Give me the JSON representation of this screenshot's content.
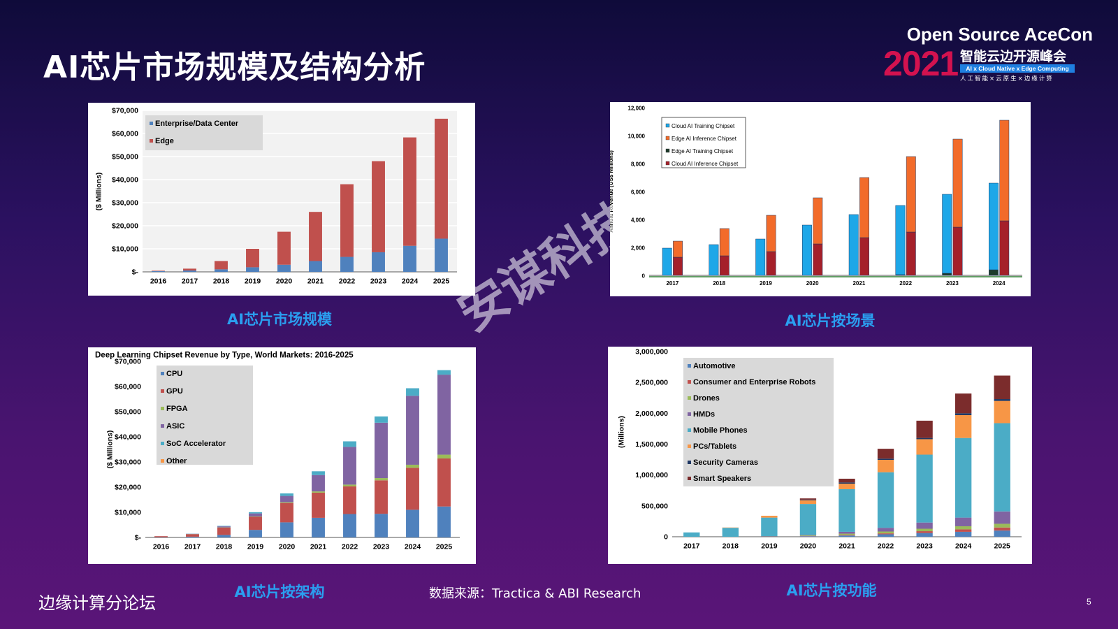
{
  "slide": {
    "title": "AI芯片市场规模及结构分析",
    "footer_left": "边缘计算分论坛",
    "source": "数据来源：Tractica & ABI Research",
    "page_number": "5",
    "watermark": "安谋科技"
  },
  "logo": {
    "brand": "Open Source AceCon",
    "year": "2021",
    "summit": "智能云边开源峰会",
    "bar_text": "AI x Cloud Native x Edge Computing",
    "tagline": "人工智能×云原生×边缘计算"
  },
  "captions": {
    "c1": "AI芯片市场规模",
    "c2": "AI芯片按场景",
    "c3": "AI芯片按架构",
    "c4": "AI芯片按功能"
  },
  "colors": {
    "enterprise": "#4f81bd",
    "edge": "#c0504d",
    "cloud_training": "#1ea7e8",
    "edge_inference": "#f26b2a",
    "edge_training": "#1d3b2a",
    "cloud_inference": "#a5202a",
    "cpu": "#4f81bd",
    "gpu": "#c0504d",
    "fpga": "#9bbb59",
    "asic": "#8064a2",
    "soc": "#4bacc6",
    "other": "#f79646",
    "automotive": "#4f81bd",
    "robots": "#c0504d",
    "drones": "#9bbb59",
    "hmds": "#8064a2",
    "mobile": "#4bacc6",
    "pcs": "#f79646",
    "security": "#1f3864",
    "speakers": "#7b2c2c"
  },
  "chart_data": [
    {
      "id": "market-size",
      "type": "bar",
      "stacked": true,
      "categories": [
        "2016",
        "2017",
        "2018",
        "2019",
        "2020",
        "2021",
        "2022",
        "2023",
        "2024",
        "2025"
      ],
      "series": [
        {
          "name": "Enterprise/Data Center",
          "color_key": "enterprise",
          "values": [
            300,
            600,
            1100,
            2000,
            3100,
            4700,
            6500,
            8500,
            11300,
            14400
          ]
        },
        {
          "name": "Edge",
          "color_key": "edge",
          "values": [
            200,
            800,
            3600,
            8000,
            14300,
            21300,
            31500,
            39500,
            47000,
            52000
          ]
        }
      ],
      "ylabel": "($ Millions)",
      "ylim": [
        0,
        70000
      ],
      "yticks": [
        0,
        10000,
        20000,
        30000,
        40000,
        50000,
        60000,
        70000
      ],
      "ytick_labels": [
        "$-",
        "$10,000",
        "$20,000",
        "$30,000",
        "$40,000",
        "$50,000",
        "$60,000",
        "$70,000"
      ],
      "legend": "top-left",
      "grid": true
    },
    {
      "id": "by-scenario",
      "type": "bar",
      "grouped": true,
      "categories": [
        "2017",
        "2018",
        "2019",
        "2020",
        "2021",
        "2022",
        "2023",
        "2024"
      ],
      "groups": [
        {
          "stack": [
            {
              "name": "Edge AI Training Chipset",
              "color_key": "edge_training",
              "values": [
                0,
                0,
                0,
                0,
                0,
                50,
                150,
                400
              ]
            },
            {
              "name": "Cloud AI Training Chipset",
              "color_key": "cloud_training",
              "values": [
                1950,
                2200,
                2600,
                3600,
                4350,
                4950,
                5650,
                6200
              ]
            }
          ]
        },
        {
          "stack": [
            {
              "name": "Cloud AI Inference Chipset",
              "color_key": "cloud_inference",
              "values": [
                1300,
                1400,
                1700,
                2250,
                2700,
                3100,
                3450,
                3900
              ]
            },
            {
              "name": "Edge AI Inference Chipset",
              "color_key": "edge_inference",
              "values": [
                1150,
                1950,
                2600,
                3300,
                4300,
                5400,
                6300,
                7200
              ]
            }
          ]
        }
      ],
      "legend_entries": [
        "Cloud AI Training Chipset",
        "Edge AI Inference Chipset",
        "Edge AI Training Chipset",
        "Cloud AI Inference Chipset"
      ],
      "legend_colors": [
        "cloud_training",
        "edge_inference",
        "edge_training",
        "cloud_inference"
      ],
      "ylabel": "Annual Revenue (US$ Millions)",
      "ylim": [
        0,
        12000
      ],
      "yticks": [
        0,
        2000,
        4000,
        6000,
        8000,
        10000,
        12000
      ],
      "ytick_labels": [
        "0",
        "2,000",
        "4,000",
        "6,000",
        "8,000",
        "10,000",
        "12,000"
      ],
      "legend": "top-left",
      "grid": false
    },
    {
      "id": "by-architecture",
      "type": "bar",
      "stacked": true,
      "title": "Deep Learning Chipset Revenue by Type, World Markets: 2016-2025",
      "categories": [
        "2016",
        "2017",
        "2018",
        "2019",
        "2020",
        "2021",
        "2022",
        "2023",
        "2024",
        "2025"
      ],
      "series": [
        {
          "name": "CPU",
          "color_key": "cpu",
          "values": [
            100,
            300,
            1000,
            3000,
            6000,
            7800,
            9300,
            9400,
            11000,
            12300
          ]
        },
        {
          "name": "GPU",
          "color_key": "gpu",
          "values": [
            400,
            1000,
            2900,
            5200,
            7700,
            10000,
            11000,
            13300,
            16700,
            19100
          ]
        },
        {
          "name": "FPGA",
          "color_key": "fpga",
          "values": [
            0,
            50,
            100,
            150,
            300,
            500,
            700,
            900,
            1200,
            1500
          ]
        },
        {
          "name": "ASIC",
          "color_key": "asic",
          "values": [
            0,
            100,
            400,
            1200,
            2500,
            6500,
            15000,
            22000,
            27400,
            31800
          ]
        },
        {
          "name": "SoC Accelerator",
          "color_key": "soc",
          "values": [
            0,
            50,
            200,
            500,
            1000,
            1500,
            2200,
            2500,
            3000,
            1800
          ]
        },
        {
          "name": "Other",
          "color_key": "other",
          "values": [
            0,
            0,
            0,
            0,
            0,
            0,
            0,
            0,
            0,
            0
          ]
        }
      ],
      "ylabel": "($ Millions)",
      "ylim": [
        0,
        70000
      ],
      "yticks": [
        0,
        10000,
        20000,
        30000,
        40000,
        50000,
        60000,
        70000
      ],
      "ytick_labels": [
        "$-",
        "$10,000",
        "$20,000",
        "$30,000",
        "$40,000",
        "$50,000",
        "$60,000",
        "$70,000"
      ],
      "legend": "top-left",
      "grid": false
    },
    {
      "id": "by-function",
      "type": "bar",
      "stacked": true,
      "categories": [
        "2017",
        "2018",
        "2019",
        "2020",
        "2021",
        "2022",
        "2023",
        "2024",
        "2025"
      ],
      "series": [
        {
          "name": "Automotive",
          "color_key": "automotive",
          "values": [
            0,
            0,
            2000,
            8000,
            20000,
            40000,
            60000,
            80000,
            100000
          ]
        },
        {
          "name": "Consumer and Enterprise Robots",
          "color_key": "robots",
          "values": [
            0,
            0,
            1000,
            3000,
            10000,
            15000,
            30000,
            40000,
            50000
          ]
        },
        {
          "name": "Drones",
          "color_key": "drones",
          "values": [
            0,
            0,
            2000,
            10000,
            20000,
            30000,
            40000,
            50000,
            60000
          ]
        },
        {
          "name": "HMDs",
          "color_key": "hmds",
          "values": [
            0,
            0,
            5000,
            10000,
            30000,
            60000,
            100000,
            140000,
            200000
          ]
        },
        {
          "name": "Mobile Phones",
          "color_key": "mobile",
          "values": [
            70000,
            145000,
            300000,
            500000,
            690000,
            900000,
            1100000,
            1290000,
            1430000
          ]
        },
        {
          "name": "PCs/Tablets",
          "color_key": "pcs",
          "values": [
            0,
            5000,
            30000,
            60000,
            90000,
            200000,
            250000,
            370000,
            360000
          ]
        },
        {
          "name": "Security Cameras",
          "color_key": "security",
          "values": [
            0,
            0,
            0,
            10000,
            20000,
            20000,
            20000,
            30000,
            30000
          ]
        },
        {
          "name": "Smart Speakers",
          "color_key": "speakers",
          "values": [
            0,
            0,
            0,
            20000,
            60000,
            160000,
            280000,
            320000,
            380000
          ]
        }
      ],
      "ylabel": "(Millions)",
      "ylim": [
        0,
        3000000
      ],
      "yticks": [
        0,
        500000,
        1000000,
        1500000,
        2000000,
        2500000,
        3000000
      ],
      "ytick_labels": [
        "0",
        "500,000",
        "1,000,000",
        "1,500,000",
        "2,000,000",
        "2,500,000",
        "3,000,000"
      ],
      "legend": "top-left",
      "grid": false
    }
  ]
}
